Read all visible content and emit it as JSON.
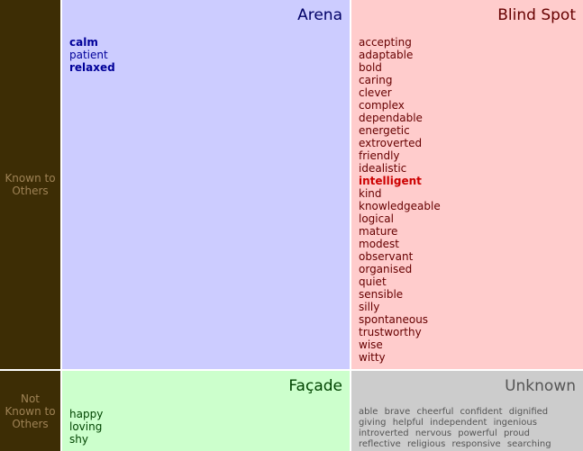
{
  "rows": {
    "known_to_others": [
      "Known to",
      "Others"
    ],
    "not_known_to_others": [
      "Not",
      "Known to",
      "Others"
    ]
  },
  "arena": {
    "title": "Arena",
    "items": [
      {
        "text": "calm",
        "highlight": true
      },
      {
        "text": "patient",
        "highlight": false
      },
      {
        "text": "relaxed",
        "highlight": true
      }
    ]
  },
  "blind_spot": {
    "title": "Blind Spot",
    "items": [
      {
        "text": "accepting",
        "highlight": false
      },
      {
        "text": "adaptable",
        "highlight": false
      },
      {
        "text": "bold",
        "highlight": false
      },
      {
        "text": "caring",
        "highlight": false
      },
      {
        "text": "clever",
        "highlight": false
      },
      {
        "text": "complex",
        "highlight": false
      },
      {
        "text": "dependable",
        "highlight": false
      },
      {
        "text": "energetic",
        "highlight": false
      },
      {
        "text": "extroverted",
        "highlight": false
      },
      {
        "text": "friendly",
        "highlight": false
      },
      {
        "text": "idealistic",
        "highlight": false
      },
      {
        "text": "intelligent",
        "highlight": true
      },
      {
        "text": "kind",
        "highlight": false
      },
      {
        "text": "knowledgeable",
        "highlight": false
      },
      {
        "text": "logical",
        "highlight": false
      },
      {
        "text": "mature",
        "highlight": false
      },
      {
        "text": "modest",
        "highlight": false
      },
      {
        "text": "observant",
        "highlight": false
      },
      {
        "text": "organised",
        "highlight": false
      },
      {
        "text": "quiet",
        "highlight": false
      },
      {
        "text": "sensible",
        "highlight": false
      },
      {
        "text": "silly",
        "highlight": false
      },
      {
        "text": "spontaneous",
        "highlight": false
      },
      {
        "text": "trustworthy",
        "highlight": false
      },
      {
        "text": "wise",
        "highlight": false
      },
      {
        "text": "witty",
        "highlight": false
      }
    ]
  },
  "facade": {
    "title": "Façade",
    "items": [
      {
        "text": "happy",
        "highlight": false
      },
      {
        "text": "loving",
        "highlight": false
      },
      {
        "text": "shy",
        "highlight": false
      }
    ]
  },
  "unknown": {
    "title": "Unknown",
    "items": [
      "able",
      "brave",
      "cheerful",
      "confident",
      "dignified",
      "giving",
      "helpful",
      "independent",
      "ingenious",
      "introverted",
      "nervous",
      "powerful",
      "proud",
      "reflective",
      "religious",
      "responsive",
      "searching"
    ]
  },
  "colors": {
    "side_bg": "#3d2d05",
    "side_text": "#9e8255",
    "arena_bg": "#ccccff",
    "blind_spot_bg": "#ffcccc",
    "facade_bg": "#ccffcc",
    "unknown_bg": "#cccccc",
    "blind_spot_highlight": "#cc0000"
  }
}
